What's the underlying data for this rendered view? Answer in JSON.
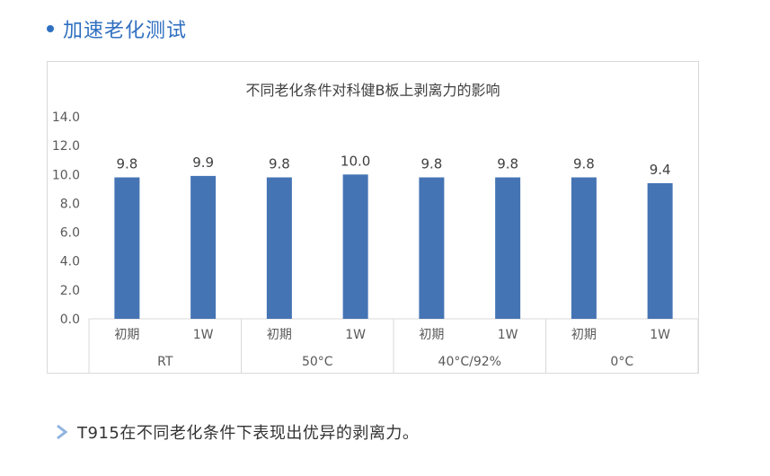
{
  "section": {
    "title": "加速老化测试"
  },
  "chart_data": {
    "type": "bar",
    "title": "不同老化条件对科健B板上剥离力的影响",
    "ylim": [
      0,
      14
    ],
    "yticks": [
      "14.0",
      "12.0",
      "10.0",
      "8.0",
      "6.0",
      "4.0",
      "2.0",
      "0.0"
    ],
    "grid": false,
    "groups": [
      {
        "label": "RT",
        "bars": [
          {
            "label": "初期",
            "value": 9.8,
            "text": "9.8"
          },
          {
            "label": "1W",
            "value": 9.9,
            "text": "9.9"
          }
        ]
      },
      {
        "label": "50°C",
        "bars": [
          {
            "label": "初期",
            "value": 9.8,
            "text": "9.8"
          },
          {
            "label": "1W",
            "value": 10.0,
            "text": "10.0"
          }
        ]
      },
      {
        "label": "40°C/92%",
        "bars": [
          {
            "label": "初期",
            "value": 9.8,
            "text": "9.8"
          },
          {
            "label": "1W",
            "value": 9.8,
            "text": "9.8"
          }
        ]
      },
      {
        "label": "0°C",
        "bars": [
          {
            "label": "初期",
            "value": 9.8,
            "text": "9.8"
          },
          {
            "label": "1W",
            "value": 9.4,
            "text": "9.4"
          }
        ]
      }
    ],
    "bar_color": "#4574b4"
  },
  "note": {
    "text": "T915在不同老化条件下表现出优异的剥离力。"
  }
}
